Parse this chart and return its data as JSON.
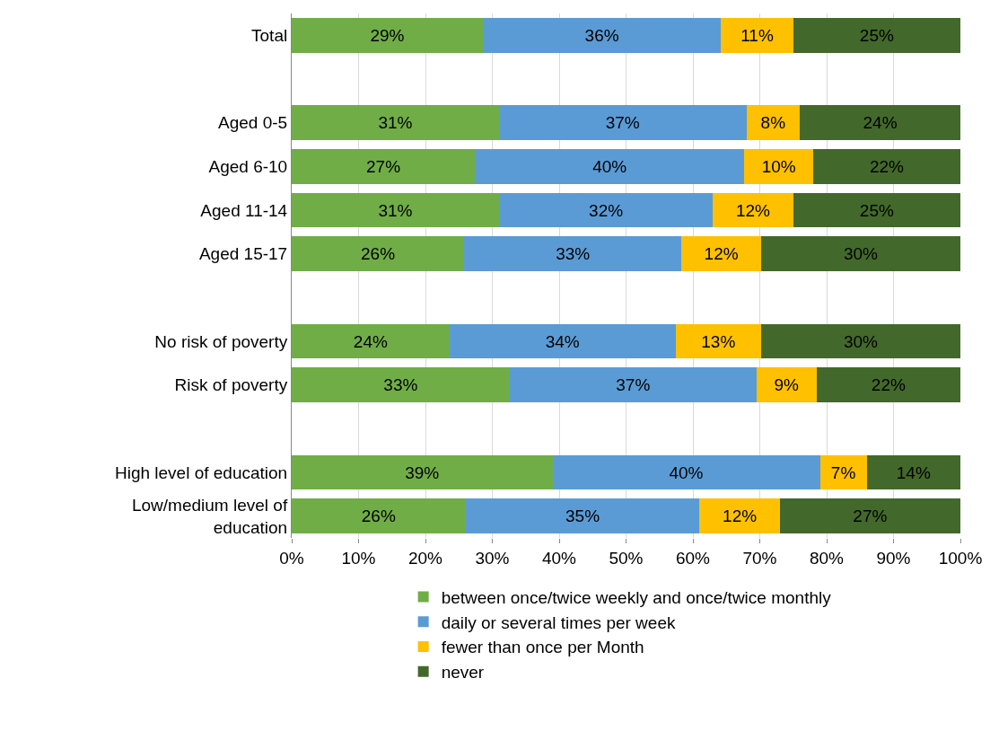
{
  "chart_data": {
    "type": "bar",
    "orientation": "horizontal",
    "stacked": true,
    "categories": [
      "Total",
      null,
      "Aged 0-5",
      "Aged 6-10",
      "Aged 11-14",
      "Aged 15-17",
      null,
      "No risk of poverty",
      "Risk of poverty",
      null,
      "High level of education",
      "Low/medium level of education"
    ],
    "series": [
      {
        "name": "between once/twice weekly and once/twice monthly",
        "color": "#70ad47",
        "values": [
          28.6,
          null,
          31,
          27.4,
          31,
          25.8,
          null,
          23.6,
          32.6,
          null,
          39,
          26
        ],
        "value_labels": [
          "29%",
          null,
          "31%",
          "27%",
          "31%",
          "26%",
          null,
          "24%",
          "33%",
          null,
          "39%",
          "26%"
        ]
      },
      {
        "name": "daily or several times per week",
        "color": "#5b9bd5",
        "values": [
          35.6,
          null,
          37,
          40.3,
          32,
          32.5,
          null,
          33.8,
          36.9,
          null,
          40,
          35
        ],
        "value_labels": [
          "36%",
          null,
          "37%",
          "40%",
          "32%",
          "33%",
          null,
          "34%",
          "37%",
          null,
          "40%",
          "35%"
        ]
      },
      {
        "name": "fewer than once per Month",
        "color": "#ffc000",
        "values": [
          10.8,
          null,
          8,
          10.3,
          12,
          11.9,
          null,
          12.8,
          9,
          null,
          7,
          12
        ],
        "value_labels": [
          "11%",
          null,
          "8%",
          "10%",
          "12%",
          "12%",
          null,
          "13%",
          "9%",
          null,
          "7%",
          "12%"
        ]
      },
      {
        "name": "never",
        "color": "#43682b",
        "values": [
          25,
          null,
          24,
          22,
          25,
          29.8,
          null,
          29.8,
          21.5,
          null,
          14,
          27
        ],
        "value_labels": [
          "25%",
          null,
          "24%",
          "22%",
          "25%",
          "30%",
          null,
          "30%",
          "22%",
          null,
          "14%",
          "27%"
        ]
      }
    ],
    "xlim": [
      0,
      100
    ],
    "xticks": [
      {
        "value": 0,
        "label": "0%"
      },
      {
        "value": 10,
        "label": "10%"
      },
      {
        "value": 20,
        "label": "20%"
      },
      {
        "value": 30,
        "label": "30%"
      },
      {
        "value": 40,
        "label": "40%"
      },
      {
        "value": 50,
        "label": "50%"
      },
      {
        "value": 60,
        "label": "60%"
      },
      {
        "value": 70,
        "label": "70%"
      },
      {
        "value": 80,
        "label": "80%"
      },
      {
        "value": 90,
        "label": "90%"
      },
      {
        "value": 100,
        "label": "100%"
      }
    ],
    "grid": "x",
    "legend": "bottom"
  }
}
